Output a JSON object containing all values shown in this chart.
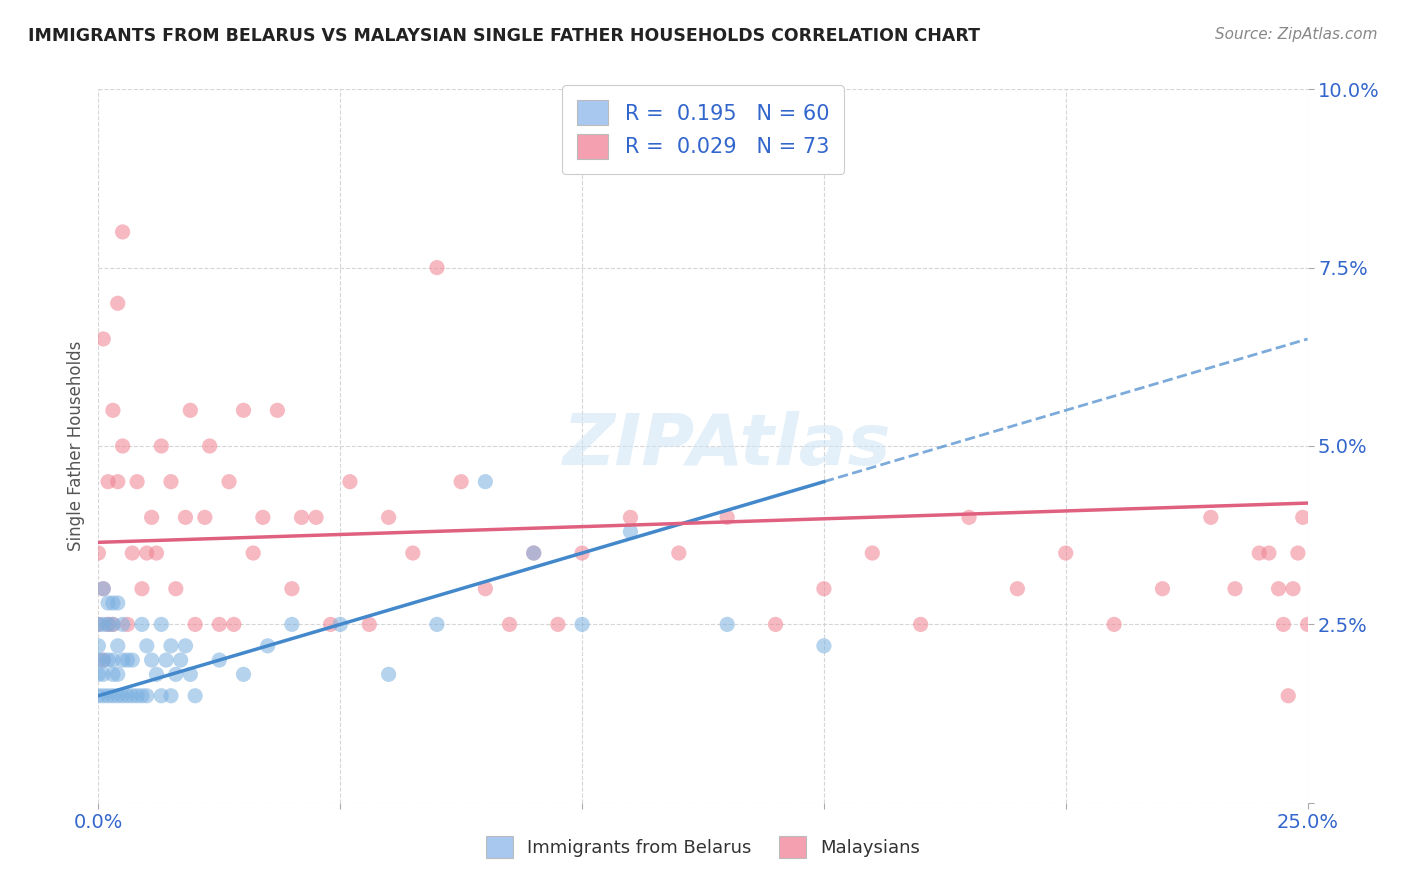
{
  "title": "IMMIGRANTS FROM BELARUS VS MALAYSIAN SINGLE FATHER HOUSEHOLDS CORRELATION CHART",
  "source": "Source: ZipAtlas.com",
  "ylabel": "Single Father Households",
  "xlim": [
    0.0,
    0.25
  ],
  "ylim": [
    0.0,
    0.1
  ],
  "legend_labels": [
    "Immigrants from Belarus",
    "Malaysians"
  ],
  "R_belarus": 0.195,
  "N_belarus": 60,
  "R_malaysian": 0.029,
  "N_malaysian": 73,
  "color_belarus": "#a8c8f0",
  "color_malaysian": "#f4a0b0",
  "scatter_color_belarus": "#7ab0e0",
  "scatter_color_malaysian": "#f08090",
  "trendline_color_belarus": "#4488cc",
  "trendline_color_malaysian": "#e06080",
  "watermark": "ZIPAtlas",
  "belarus_x": [
    0.0,
    0.0,
    0.0,
    0.0,
    0.0,
    0.001,
    0.001,
    0.001,
    0.001,
    0.001,
    0.002,
    0.002,
    0.002,
    0.002,
    0.003,
    0.003,
    0.003,
    0.003,
    0.003,
    0.004,
    0.004,
    0.004,
    0.004,
    0.005,
    0.005,
    0.005,
    0.006,
    0.006,
    0.007,
    0.007,
    0.008,
    0.009,
    0.009,
    0.01,
    0.01,
    0.011,
    0.012,
    0.013,
    0.013,
    0.014,
    0.015,
    0.015,
    0.016,
    0.017,
    0.018,
    0.019,
    0.02,
    0.025,
    0.03,
    0.035,
    0.04,
    0.05,
    0.06,
    0.07,
    0.08,
    0.09,
    0.1,
    0.11,
    0.13,
    0.15
  ],
  "belarus_y": [
    0.015,
    0.018,
    0.02,
    0.022,
    0.025,
    0.015,
    0.018,
    0.02,
    0.025,
    0.03,
    0.015,
    0.02,
    0.025,
    0.028,
    0.015,
    0.018,
    0.02,
    0.025,
    0.028,
    0.015,
    0.018,
    0.022,
    0.028,
    0.015,
    0.02,
    0.025,
    0.015,
    0.02,
    0.015,
    0.02,
    0.015,
    0.015,
    0.025,
    0.015,
    0.022,
    0.02,
    0.018,
    0.015,
    0.025,
    0.02,
    0.015,
    0.022,
    0.018,
    0.02,
    0.022,
    0.018,
    0.015,
    0.02,
    0.018,
    0.022,
    0.025,
    0.025,
    0.018,
    0.025,
    0.045,
    0.035,
    0.025,
    0.038,
    0.025,
    0.022
  ],
  "malaysian_x": [
    0.0,
    0.0,
    0.001,
    0.001,
    0.001,
    0.002,
    0.002,
    0.003,
    0.003,
    0.004,
    0.004,
    0.005,
    0.005,
    0.006,
    0.007,
    0.008,
    0.009,
    0.01,
    0.011,
    0.012,
    0.013,
    0.015,
    0.016,
    0.018,
    0.019,
    0.02,
    0.022,
    0.023,
    0.025,
    0.027,
    0.028,
    0.03,
    0.032,
    0.034,
    0.037,
    0.04,
    0.042,
    0.045,
    0.048,
    0.052,
    0.056,
    0.06,
    0.065,
    0.07,
    0.075,
    0.08,
    0.085,
    0.09,
    0.095,
    0.1,
    0.11,
    0.12,
    0.13,
    0.14,
    0.15,
    0.16,
    0.17,
    0.18,
    0.19,
    0.2,
    0.21,
    0.22,
    0.23,
    0.235,
    0.24,
    0.245,
    0.247,
    0.249,
    0.25,
    0.248,
    0.246,
    0.244,
    0.242
  ],
  "malaysian_y": [
    0.025,
    0.035,
    0.02,
    0.03,
    0.065,
    0.045,
    0.025,
    0.025,
    0.055,
    0.045,
    0.07,
    0.05,
    0.08,
    0.025,
    0.035,
    0.045,
    0.03,
    0.035,
    0.04,
    0.035,
    0.05,
    0.045,
    0.03,
    0.04,
    0.055,
    0.025,
    0.04,
    0.05,
    0.025,
    0.045,
    0.025,
    0.055,
    0.035,
    0.04,
    0.055,
    0.03,
    0.04,
    0.04,
    0.025,
    0.045,
    0.025,
    0.04,
    0.035,
    0.075,
    0.045,
    0.03,
    0.025,
    0.035,
    0.025,
    0.035,
    0.04,
    0.035,
    0.04,
    0.025,
    0.03,
    0.035,
    0.025,
    0.04,
    0.03,
    0.035,
    0.025,
    0.03,
    0.04,
    0.03,
    0.035,
    0.025,
    0.03,
    0.04,
    0.025,
    0.035,
    0.015,
    0.03,
    0.035
  ],
  "trendline_belarus_x0": 0.0,
  "trendline_belarus_y0": 0.015,
  "trendline_belarus_x1": 0.15,
  "trendline_belarus_y1": 0.045,
  "trendline_malaysian_x0": 0.0,
  "trendline_malaysian_y0": 0.0365,
  "trendline_malaysian_x1": 0.25,
  "trendline_malaysian_y1": 0.042
}
